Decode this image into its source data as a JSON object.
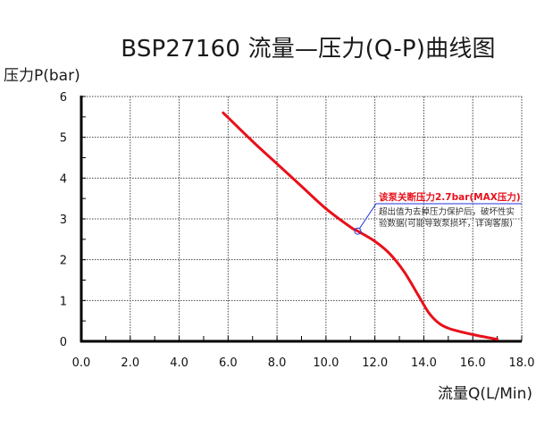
{
  "chart_data": {
    "type": "line",
    "title": "BSP27160 流量—压力(Q-P)曲线图",
    "xlabel": "流量Q(L/Min)",
    "ylabel": "压力P(bar)",
    "xlim": [
      0,
      18
    ],
    "ylim": [
      0,
      6
    ],
    "x_ticks": [
      "0.0",
      "2.0",
      "4.0",
      "6.0",
      "8.0",
      "10.0",
      "12.0",
      "14.0",
      "16.0",
      "18.0"
    ],
    "y_ticks": [
      "0",
      "1",
      "2",
      "3",
      "4",
      "5",
      "6"
    ],
    "grid": true,
    "grid_style": "dotted",
    "series": [
      {
        "name": "Q-P curve",
        "color": "#e8101a",
        "x": [
          5.8,
          7.0,
          8.0,
          9.0,
          10.0,
          11.0,
          11.3,
          12.0,
          12.6,
          13.2,
          13.8,
          14.2,
          14.6,
          15.0,
          15.6,
          16.2,
          17.0
        ],
        "y": [
          5.6,
          4.9,
          4.35,
          3.8,
          3.25,
          2.8,
          2.7,
          2.45,
          2.15,
          1.7,
          1.1,
          0.7,
          0.45,
          0.32,
          0.22,
          0.14,
          0.05
        ]
      }
    ],
    "annotations": [
      {
        "marker": {
          "x": 11.3,
          "y": 2.7,
          "shape": "circle",
          "color": "#2233dd"
        },
        "headline": "该泵关断压力2.7bar(MAX压力)",
        "headline_color": "#e8101a",
        "note_line1": "超出值为去掉压力保护后，破坏性实",
        "note_line2": "验数据(可能导致泵损坏，详询客服)",
        "leader_color": "#2233dd"
      }
    ]
  },
  "header": {
    "title": "BSP27160 流量—压力(Q-P)曲线图"
  },
  "axes": {
    "y_label": "压力P(bar)",
    "x_label": "流量Q(L/Min)"
  }
}
